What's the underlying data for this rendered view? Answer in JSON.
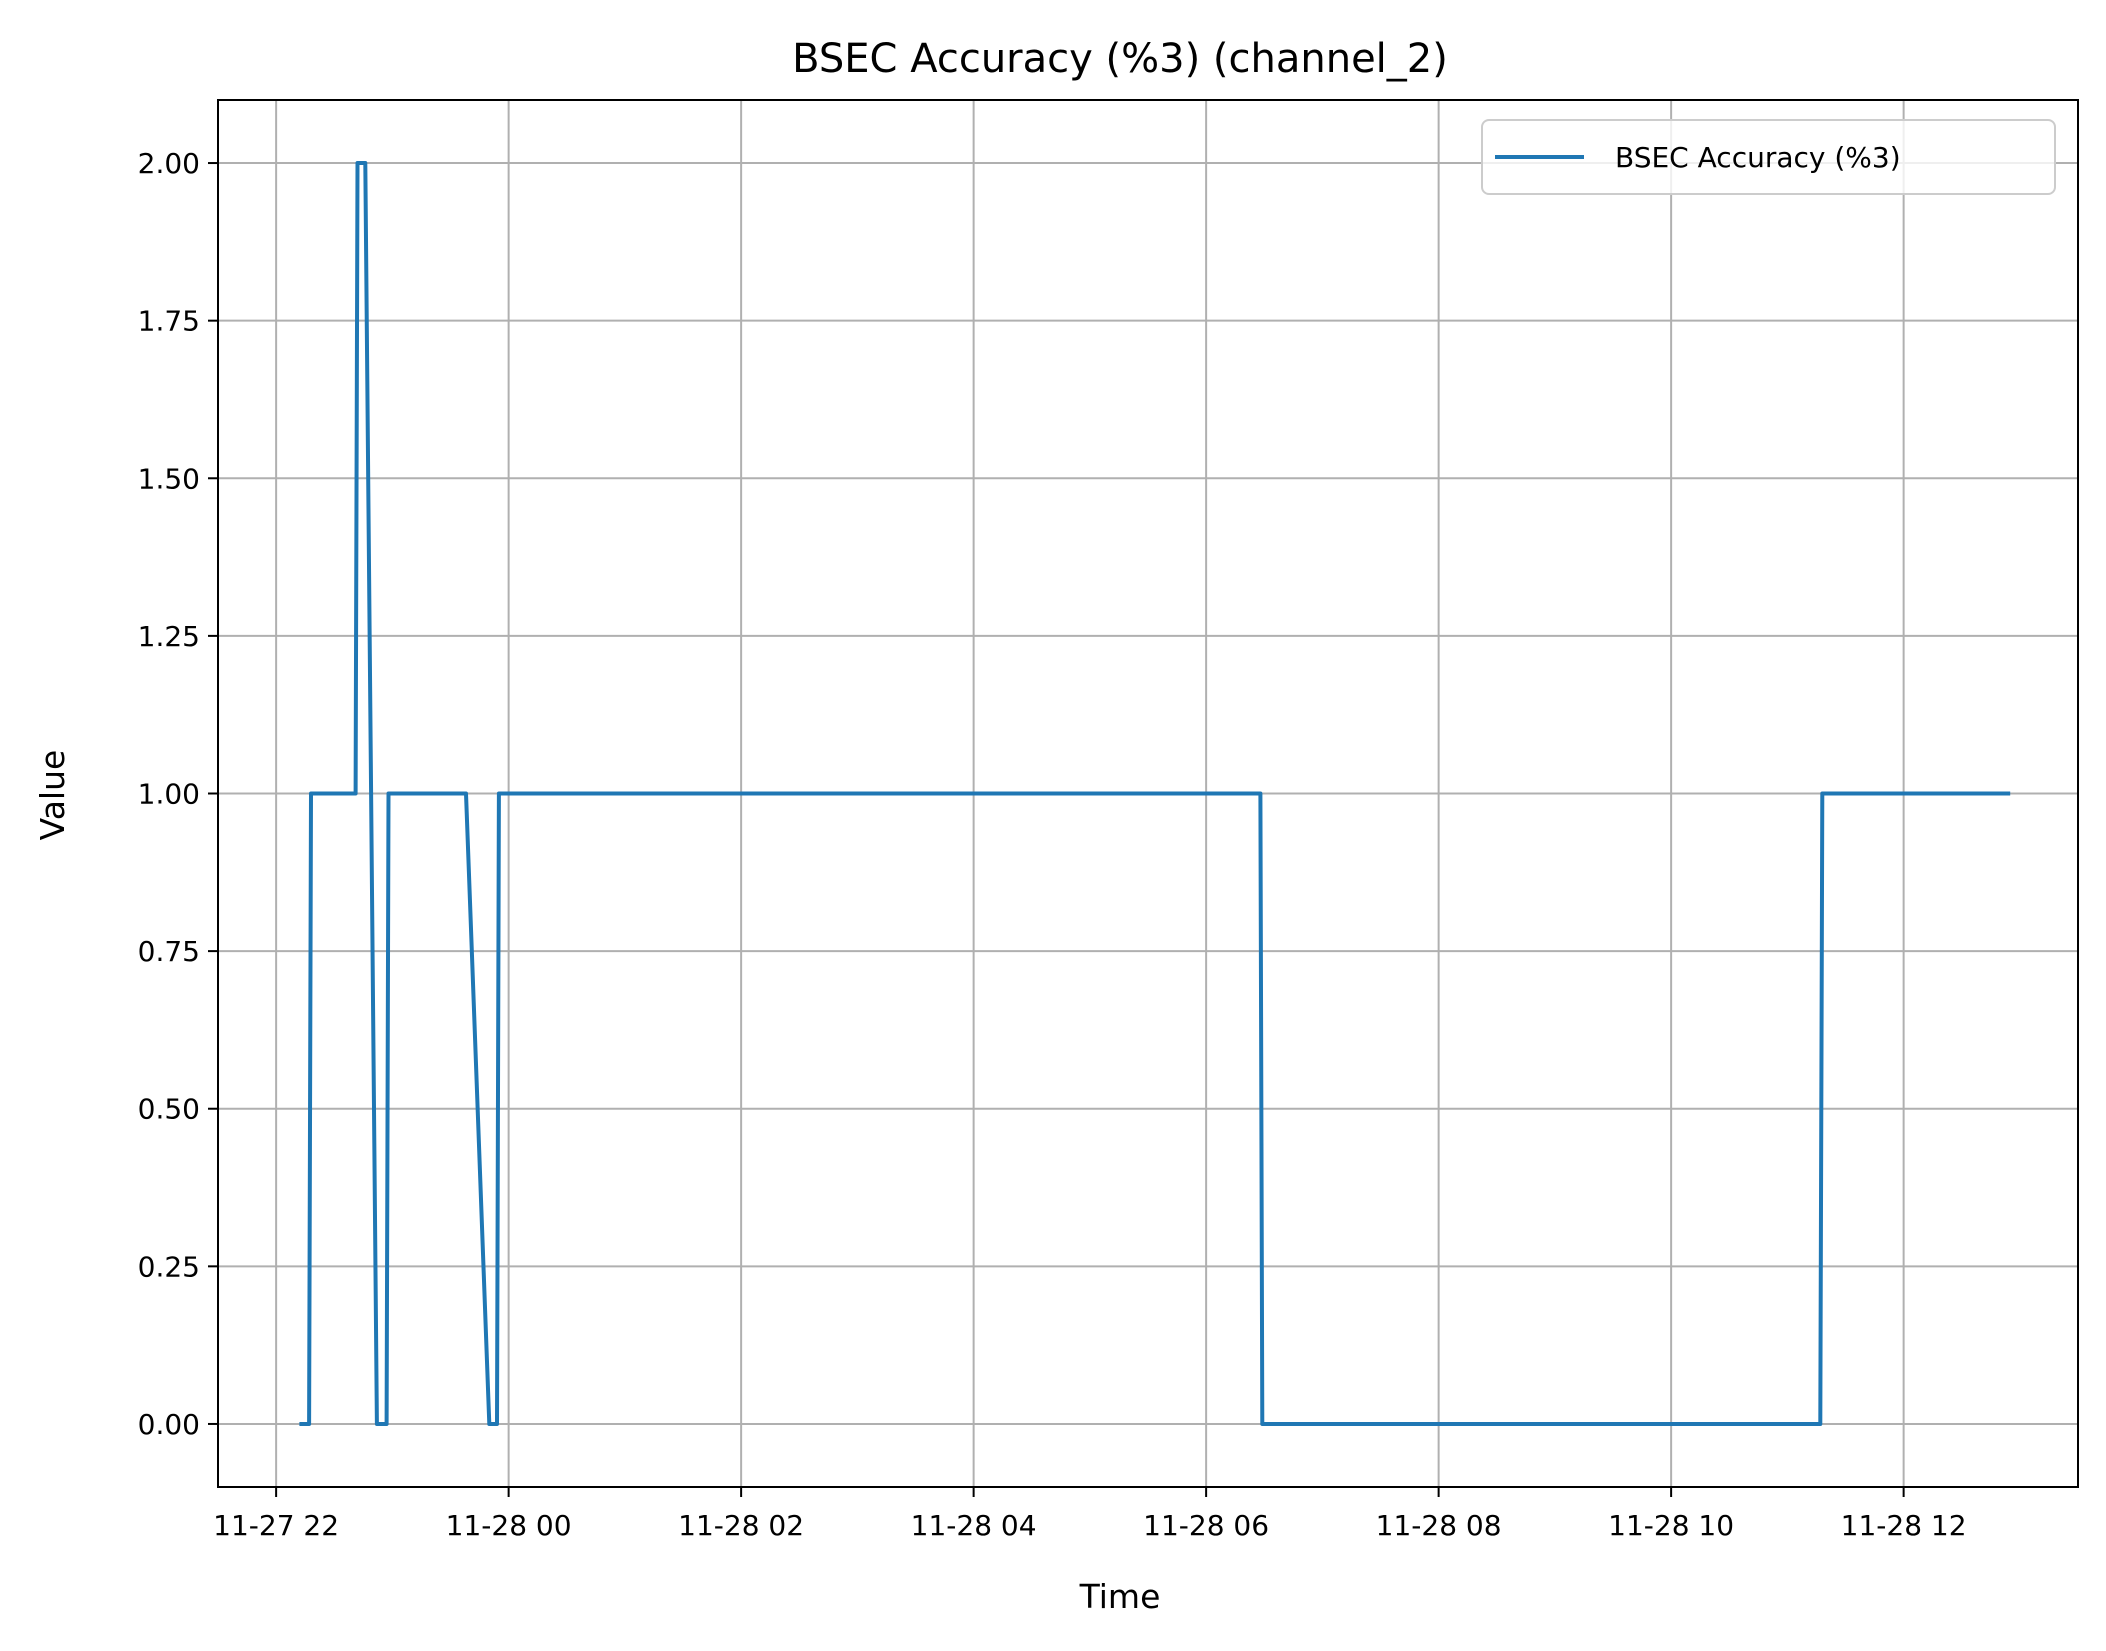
{
  "chart_data": {
    "type": "line",
    "title": "BSEC Accuracy (%3) (channel_2)",
    "xlabel": "Time",
    "ylabel": "Value",
    "xlim": [
      "2024-11-27 21:30",
      "2024-11-28 13:30"
    ],
    "ylim": [
      -0.1,
      2.1
    ],
    "grid": true,
    "legend_position": "top-right",
    "x_ticks": [
      {
        "t": "2024-11-27 22:00",
        "label": "11-27 22"
      },
      {
        "t": "2024-11-28 00:00",
        "label": "11-28 00"
      },
      {
        "t": "2024-11-28 02:00",
        "label": "11-28 02"
      },
      {
        "t": "2024-11-28 04:00",
        "label": "11-28 04"
      },
      {
        "t": "2024-11-28 06:00",
        "label": "11-28 06"
      },
      {
        "t": "2024-11-28 08:00",
        "label": "11-28 08"
      },
      {
        "t": "2024-11-28 10:00",
        "label": "11-28 10"
      },
      {
        "t": "2024-11-28 12:00",
        "label": "11-28 12"
      }
    ],
    "y_ticks": [
      {
        "v": 0.0,
        "label": "0.00"
      },
      {
        "v": 0.25,
        "label": "0.25"
      },
      {
        "v": 0.5,
        "label": "0.50"
      },
      {
        "v": 0.75,
        "label": "0.75"
      },
      {
        "v": 1.0,
        "label": "1.00"
      },
      {
        "v": 1.25,
        "label": "1.25"
      },
      {
        "v": 1.5,
        "label": "1.50"
      },
      {
        "v": 1.75,
        "label": "1.75"
      },
      {
        "v": 2.0,
        "label": "2.00"
      }
    ],
    "series": [
      {
        "name": "BSEC Accuracy (%3)",
        "color": "#1f77b4",
        "points": [
          {
            "t": "2024-11-27 22:12",
            "y": 0
          },
          {
            "t": "2024-11-27 22:17",
            "y": 0
          },
          {
            "t": "2024-11-27 22:18",
            "y": 1
          },
          {
            "t": "2024-11-27 22:41",
            "y": 1
          },
          {
            "t": "2024-11-27 22:42",
            "y": 2
          },
          {
            "t": "2024-11-27 22:46",
            "y": 2
          },
          {
            "t": "2024-11-27 22:52",
            "y": 0
          },
          {
            "t": "2024-11-27 22:57",
            "y": 0
          },
          {
            "t": "2024-11-27 22:58",
            "y": 1
          },
          {
            "t": "2024-11-27 23:38",
            "y": 1
          },
          {
            "t": "2024-11-27 23:50",
            "y": 0
          },
          {
            "t": "2024-11-27 23:54",
            "y": 0
          },
          {
            "t": "2024-11-27 23:55",
            "y": 1
          },
          {
            "t": "2024-11-28 06:28",
            "y": 1
          },
          {
            "t": "2024-11-28 06:29",
            "y": 0
          },
          {
            "t": "2024-11-28 11:17",
            "y": 0
          },
          {
            "t": "2024-11-28 11:18",
            "y": 1
          },
          {
            "t": "2024-11-28 12:55",
            "y": 1
          }
        ]
      }
    ]
  }
}
